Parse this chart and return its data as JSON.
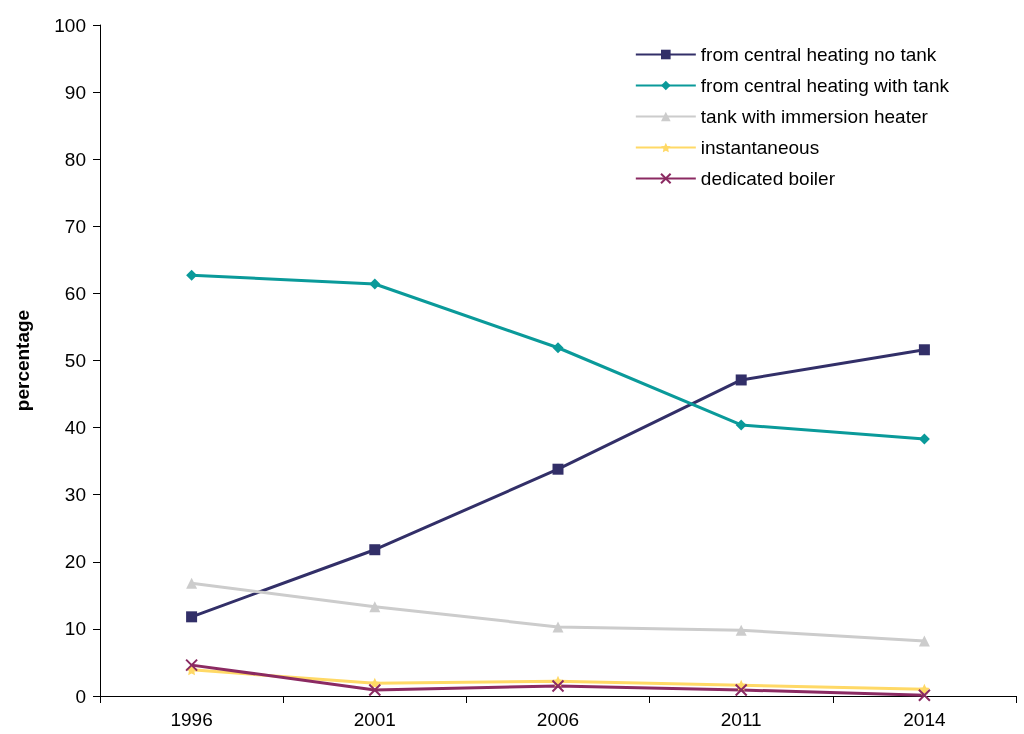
{
  "chart_data": {
    "type": "line",
    "ylabel": "percentage",
    "categories": [
      "1996",
      "2001",
      "2006",
      "2011",
      "2014"
    ],
    "series": [
      {
        "name": "from central heating no tank",
        "color": "#322f68",
        "marker": "square",
        "values": [
          11.8,
          21.8,
          33.8,
          47.1,
          51.6
        ]
      },
      {
        "name": "from central heating with tank",
        "color": "#0a9a9a",
        "marker": "diamond",
        "values": [
          62.7,
          61.4,
          51.9,
          40.4,
          38.3
        ]
      },
      {
        "name": "tank with immersion heater",
        "color": "#cccccc",
        "marker": "triangle",
        "values": [
          16.8,
          13.3,
          10.3,
          9.8,
          8.2
        ]
      },
      {
        "name": "instantaneous",
        "color": "#ffd966",
        "marker": "star",
        "values": [
          3.9,
          1.9,
          2.2,
          1.6,
          1.0
        ]
      },
      {
        "name": "dedicated boiler",
        "color": "#8b2a62",
        "marker": "cross",
        "values": [
          4.6,
          0.9,
          1.5,
          0.9,
          0.1
        ]
      }
    ],
    "ylim": [
      0,
      100
    ],
    "yticks": [
      0,
      10,
      20,
      30,
      40,
      50,
      60,
      70,
      80,
      90,
      100
    ],
    "grid": false,
    "legend": "top right",
    "line_style": "solid"
  }
}
